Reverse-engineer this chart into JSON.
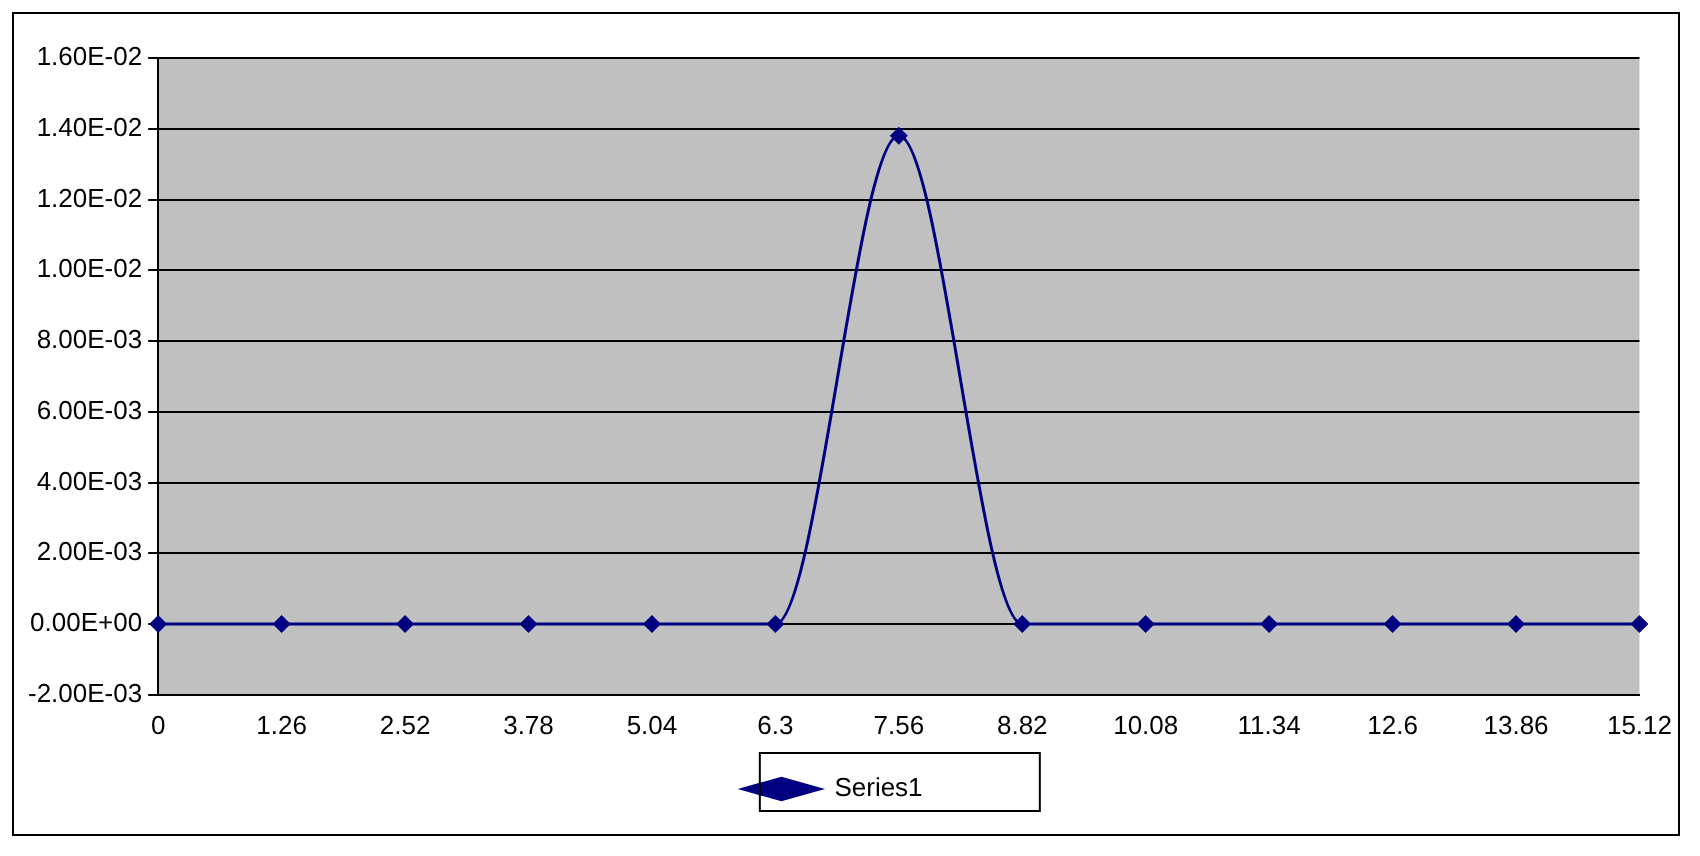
{
  "chart_data": {
    "type": "line",
    "categories": [
      "0",
      "1.26",
      "2.52",
      "3.78",
      "5.04",
      "6.3",
      "7.56",
      "8.82",
      "10.08",
      "11.34",
      "12.6",
      "13.86",
      "15.12"
    ],
    "series": [
      {
        "name": "Series1",
        "color": "#000080",
        "values": [
          0,
          0,
          0,
          0,
          0,
          0,
          0.0138,
          0,
          0,
          0,
          0,
          0,
          0
        ]
      }
    ],
    "ylim": [
      -0.002,
      0.016
    ],
    "yticks": [
      {
        "value": -0.002,
        "label": "-2.00E-03"
      },
      {
        "value": 0,
        "label": "0.00E+00"
      },
      {
        "value": 0.002,
        "label": "2.00E-03"
      },
      {
        "value": 0.004,
        "label": "4.00E-03"
      },
      {
        "value": 0.006,
        "label": "6.00E-03"
      },
      {
        "value": 0.008,
        "label": "8.00E-03"
      },
      {
        "value": 0.01,
        "label": "1.00E-02"
      },
      {
        "value": 0.012,
        "label": "1.20E-02"
      },
      {
        "value": 0.014,
        "label": "1.40E-02"
      },
      {
        "value": 0.016,
        "label": "1.60E-02"
      }
    ],
    "grid": "y",
    "legend": "bottom",
    "marker": "diamond",
    "line_style": "solid"
  }
}
